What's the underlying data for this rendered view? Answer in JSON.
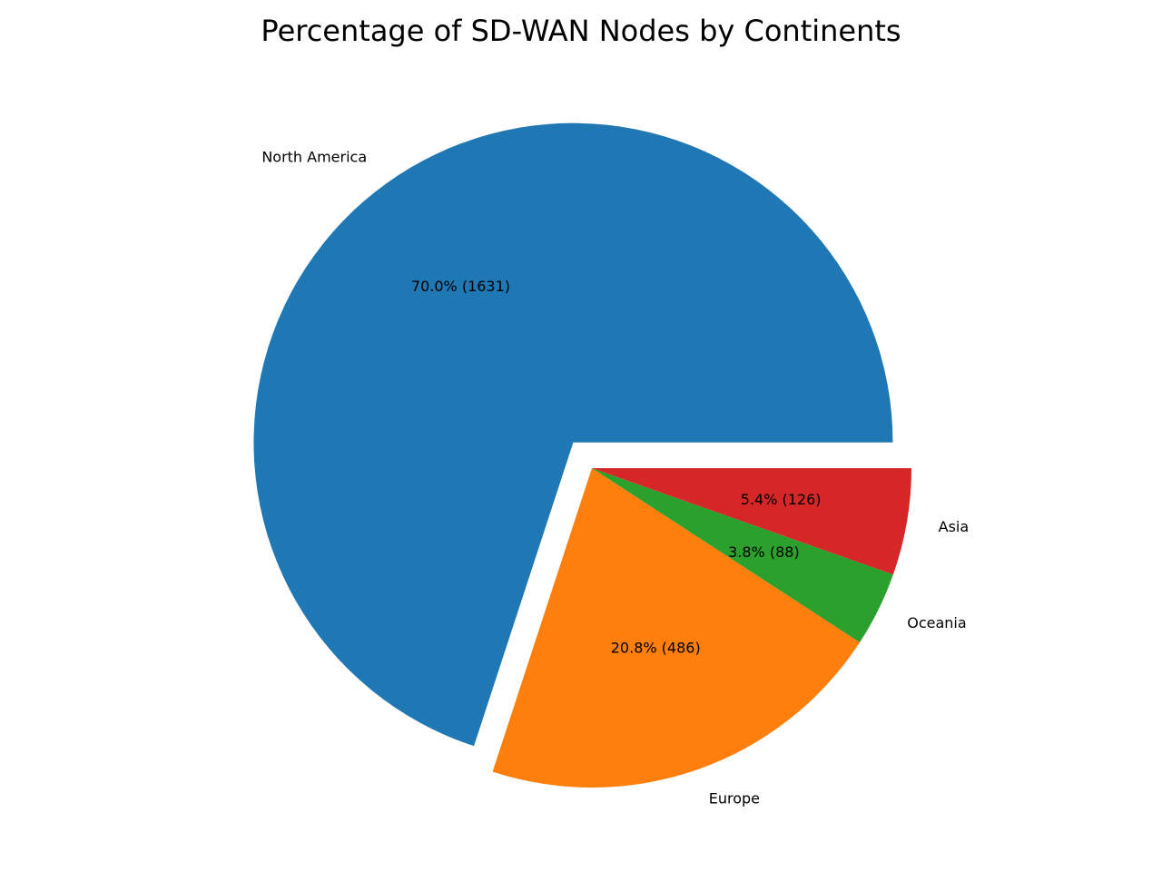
{
  "chart_data": {
    "type": "pie",
    "title": "Percentage of SD-WAN Nodes by Continents",
    "categories": [
      "North America",
      "Europe",
      "Oceania",
      "Asia"
    ],
    "values": [
      1631,
      486,
      88,
      126
    ],
    "percent_labels": [
      "70.0% (1631)",
      "20.8% (486)",
      "3.8% (88)",
      "5.4% (126)"
    ],
    "colors": [
      "#1f77b4",
      "#ff7f0e",
      "#2ca02c",
      "#d62728"
    ],
    "exploded": [
      "North America"
    ],
    "start_angle_deg": 0,
    "direction": "counterclockwise",
    "legend": "none"
  }
}
